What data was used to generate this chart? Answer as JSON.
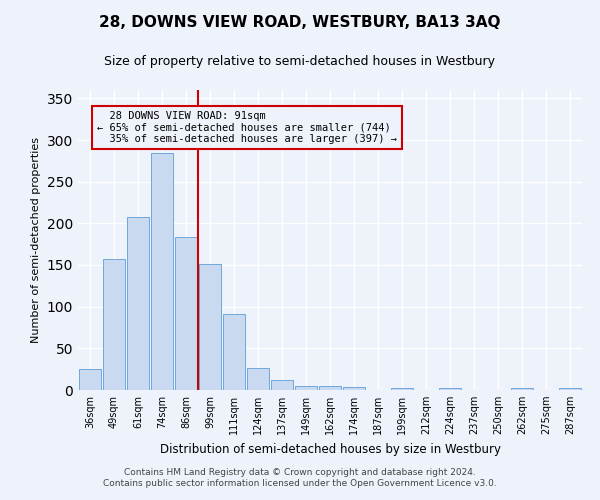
{
  "title": "28, DOWNS VIEW ROAD, WESTBURY, BA13 3AQ",
  "subtitle": "Size of property relative to semi-detached houses in Westbury",
  "xlabel": "Distribution of semi-detached houses by size in Westbury",
  "ylabel": "Number of semi-detached properties",
  "categories": [
    "36sqm",
    "49sqm",
    "61sqm",
    "74sqm",
    "86sqm",
    "99sqm",
    "111sqm",
    "124sqm",
    "137sqm",
    "149sqm",
    "162sqm",
    "174sqm",
    "187sqm",
    "199sqm",
    "212sqm",
    "224sqm",
    "237sqm",
    "250sqm",
    "262sqm",
    "275sqm",
    "287sqm"
  ],
  "values": [
    25,
    157,
    208,
    285,
    184,
    151,
    91,
    27,
    12,
    5,
    5,
    4,
    0,
    3,
    0,
    3,
    0,
    0,
    2,
    0,
    2
  ],
  "bar_color": "#c9d9f0",
  "bar_edge_color": "#6fa8dc",
  "property_line_x": 4.5,
  "property_label": "28 DOWNS VIEW ROAD: 91sqm",
  "pct_smaller": "65% of semi-detached houses are smaller (744)",
  "pct_larger": "35% of semi-detached houses are larger (397)",
  "line_color": "#cc0000",
  "annotation_box_edge": "#cc0000",
  "ylim": [
    0,
    360
  ],
  "yticks": [
    0,
    50,
    100,
    150,
    200,
    250,
    300,
    350
  ],
  "footer1": "Contains HM Land Registry data © Crown copyright and database right 2024.",
  "footer2": "Contains public sector information licensed under the Open Government Licence v3.0.",
  "bg_color": "#eef2fb",
  "grid_color": "#ffffff"
}
